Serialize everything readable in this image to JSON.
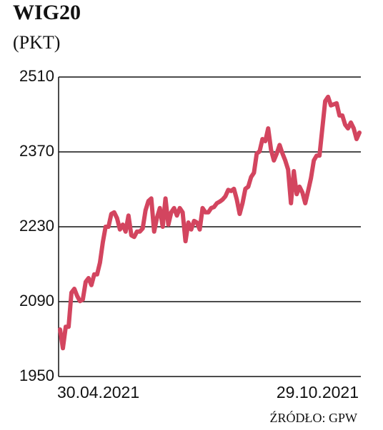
{
  "chart_data": {
    "type": "line",
    "title": "WIG20",
    "subtitle": "(PKT)",
    "source": "ŹRÓDŁO: GPW",
    "categories": [
      "30.04.2021",
      null,
      null,
      null,
      null,
      null,
      null,
      null,
      null,
      null,
      null,
      null,
      null,
      null,
      null,
      null,
      null,
      null,
      null,
      null,
      null,
      null,
      null,
      null,
      null,
      null,
      null,
      null,
      null,
      null,
      null,
      null,
      null,
      null,
      null,
      null,
      null,
      null,
      null,
      null,
      null,
      null,
      null,
      null,
      null,
      null,
      null,
      null,
      null,
      null,
      null,
      null,
      null,
      null,
      null,
      null,
      null,
      null,
      null,
      null,
      null,
      null,
      null,
      null,
      null,
      null,
      null,
      null,
      null,
      null,
      null,
      null,
      null,
      null,
      null,
      null,
      null,
      null,
      null,
      null,
      null,
      null,
      null,
      null,
      null,
      null,
      null,
      null,
      null,
      null,
      null,
      null,
      null,
      null,
      null,
      null,
      null,
      null,
      null,
      null,
      null,
      null,
      null,
      null,
      null,
      "29.10.2021"
    ],
    "values": [
      2038,
      2003,
      2043,
      2043,
      2107,
      2114,
      2101,
      2091,
      2094,
      2127,
      2134,
      2121,
      2141,
      2141,
      2163,
      2201,
      2230,
      2230,
      2254,
      2257,
      2246,
      2225,
      2234,
      2221,
      2251,
      2214,
      2211,
      2221,
      2221,
      2227,
      2261,
      2278,
      2283,
      2221,
      2247,
      2265,
      2230,
      2283,
      2234,
      2257,
      2265,
      2251,
      2265,
      2257,
      2203,
      2238,
      2225,
      2241,
      2238,
      2225,
      2265,
      2257,
      2257,
      2265,
      2267,
      2274,
      2277,
      2281,
      2287,
      2299,
      2297,
      2301,
      2281,
      2254,
      2274,
      2301,
      2305,
      2323,
      2331,
      2367,
      2371,
      2394,
      2390,
      2414,
      2374,
      2354,
      2367,
      2383,
      2367,
      2354,
      2337,
      2274,
      2334,
      2291,
      2305,
      2294,
      2274,
      2297,
      2321,
      2354,
      2363,
      2363,
      2414,
      2465,
      2473,
      2457,
      2459,
      2461,
      2438,
      2438,
      2421,
      2414,
      2425,
      2414,
      2394,
      2406
    ],
    "color": "#d3455f",
    "ylim": [
      1950,
      2510
    ],
    "yticks": [
      1950,
      2090,
      2230,
      2370,
      2510
    ],
    "grid": true
  }
}
